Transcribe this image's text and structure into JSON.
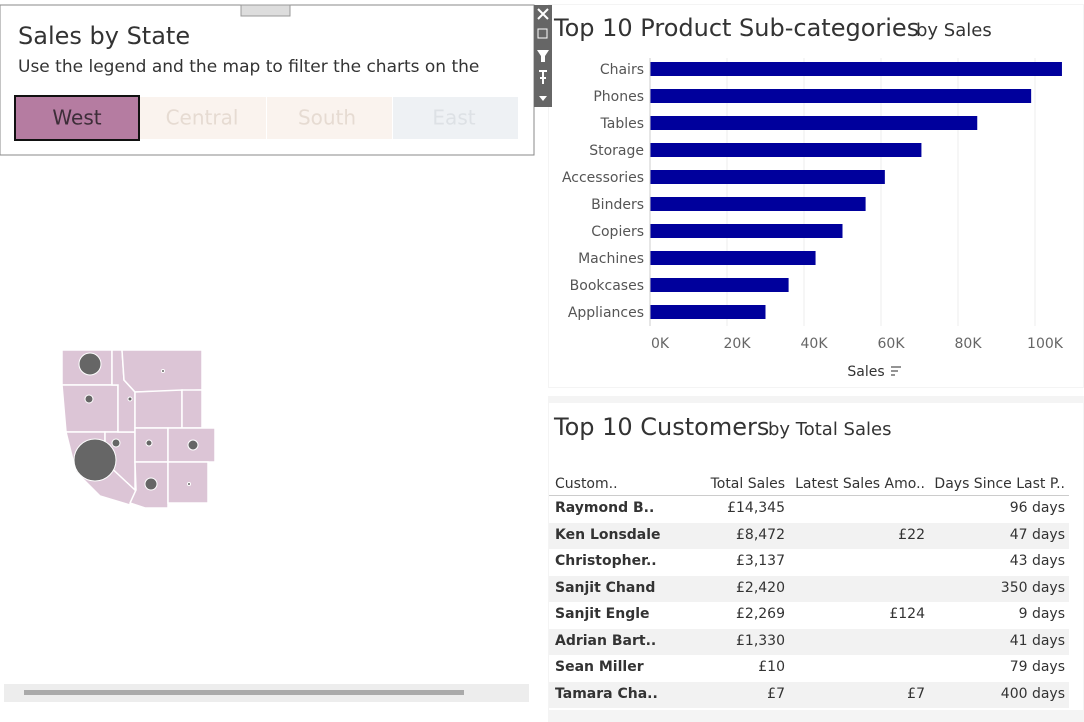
{
  "filter_panel": {
    "title": "Sales by State",
    "subtitle": "Use the legend and the map to filter the charts on the",
    "legend": [
      "West",
      "Central",
      "South",
      "East"
    ]
  },
  "chart_data": {
    "type": "bar",
    "title": "Top 10 Product Sub-categories",
    "subtitle": "by Sales",
    "x_label": "Sales",
    "categories": [
      "Chairs",
      "Phones",
      "Tables",
      "Storage",
      "Accessories",
      "Binders",
      "Copiers",
      "Machines",
      "Bookcases",
      "Appliances"
    ],
    "values": [
      107000,
      99000,
      85000,
      70500,
      61000,
      56000,
      50000,
      43000,
      36000,
      30000
    ],
    "color": "#00009c",
    "xlim": [
      0,
      110000
    ],
    "xticks": [
      {
        "value": 0,
        "label": "0K"
      },
      {
        "value": 20000,
        "label": "20K"
      },
      {
        "value": 40000,
        "label": "40K"
      },
      {
        "value": 60000,
        "label": "60K"
      },
      {
        "value": 80000,
        "label": "80K"
      },
      {
        "value": 100000,
        "label": "100K"
      }
    ],
    "grid": true
  },
  "table": {
    "title": "Top 10 Customers",
    "subtitle": "by Total Sales",
    "columns": [
      "Custom..",
      "Total Sales",
      "Latest Sales Amo..",
      "Days Since Last P.."
    ],
    "rows": [
      [
        "Raymond B..",
        "£14,345",
        null,
        "96 days"
      ],
      [
        "Ken Lonsdale",
        "£8,472",
        "£22",
        "47 days"
      ],
      [
        "Christopher..",
        "£3,137",
        null,
        "43 days"
      ],
      [
        "Sanjit Chand",
        "£2,420",
        null,
        "350 days"
      ],
      [
        "Sanjit Engle",
        "£2,269",
        "£124",
        "9 days"
      ],
      [
        "Adrian Bart..",
        "£1,330",
        null,
        "41 days"
      ],
      [
        "Sean Miller",
        "£10",
        null,
        "79 days"
      ],
      [
        "Tamara Cha..",
        "£7",
        "£7",
        "400 days"
      ]
    ]
  }
}
